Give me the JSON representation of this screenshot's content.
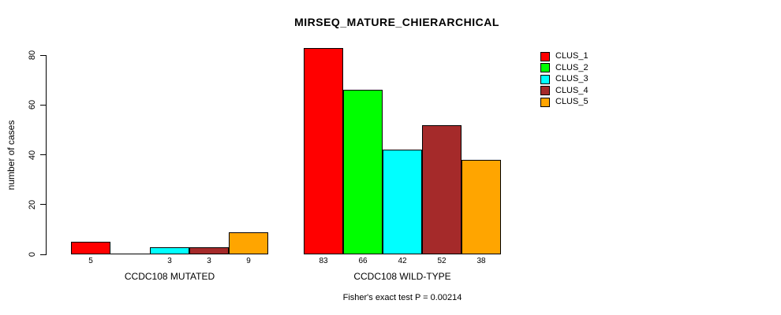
{
  "chart_data": {
    "type": "bar",
    "title": "MIRSEQ_MATURE_CHIERARCHICAL",
    "ylabel": "number of cases",
    "xlabel": "",
    "ylim": [
      0,
      80
    ],
    "yticks": [
      0,
      20,
      40,
      60,
      80
    ],
    "grid": false,
    "legend_position": "top-right",
    "categories": [
      "CCDC108 MUTATED",
      "CCDC108 WILD-TYPE"
    ],
    "series": [
      {
        "name": "CLUS_1",
        "color": "#FF0000",
        "values": [
          5,
          83
        ],
        "bar_labels": [
          "5",
          "83"
        ]
      },
      {
        "name": "CLUS_2",
        "color": "#00FF00",
        "values": [
          0,
          66
        ],
        "bar_labels": [
          "",
          "66"
        ]
      },
      {
        "name": "CLUS_3",
        "color": "#00FFFF",
        "values": [
          3,
          42
        ],
        "bar_labels": [
          "3",
          "42"
        ]
      },
      {
        "name": "CLUS_4",
        "color": "#A52A2A",
        "values": [
          3,
          52
        ],
        "bar_labels": [
          "3",
          "52"
        ]
      },
      {
        "name": "CLUS_5",
        "color": "#FFA500",
        "values": [
          9,
          38
        ],
        "bar_labels": [
          "9",
          "38"
        ]
      }
    ],
    "annotation": "Fisher's exact test P = 0.00214"
  }
}
